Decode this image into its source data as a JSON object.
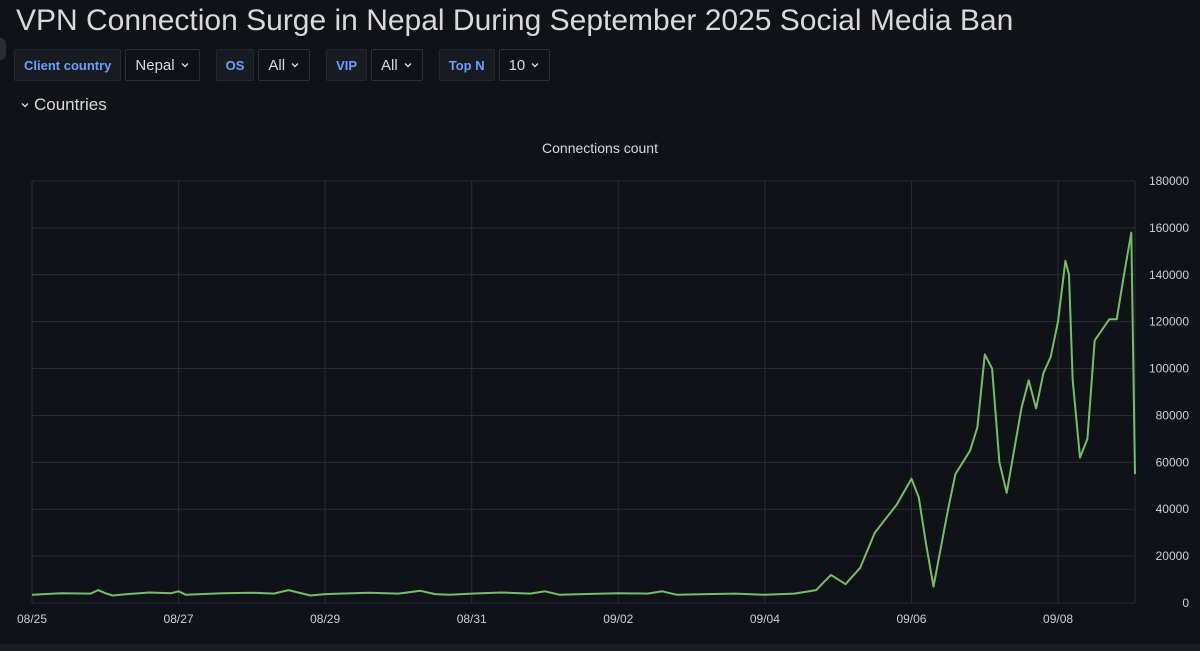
{
  "dashboard": {
    "title": "VPN Connection Surge in Nepal During September 2025 Social Media Ban"
  },
  "variables": [
    {
      "label": "Client country",
      "value": "Nepal"
    },
    {
      "label": "OS",
      "value": "All"
    },
    {
      "label": "VIP",
      "value": "All"
    },
    {
      "label": "Top N",
      "value": "10"
    }
  ],
  "row": {
    "title": "Countries",
    "icon": "chevron-down-icon"
  },
  "colors": {
    "background": "#111217",
    "series_line": "#73bf69",
    "variable_label": "#6e9fff",
    "grid": "#2a2c31"
  },
  "chart_data": {
    "type": "line",
    "title": "Connections count",
    "x_tick_labels": [
      "08/25",
      "08/27",
      "08/29",
      "08/31",
      "09/02",
      "09/04",
      "09/06",
      "09/08"
    ],
    "y_tick_labels": [
      "0",
      "20000",
      "40000",
      "60000",
      "80000",
      "100000",
      "120000",
      "140000",
      "160000",
      "180000"
    ],
    "ylim": [
      0,
      180000
    ],
    "x_unit": "days since 08/25 00:00",
    "xlim": [
      0,
      15.05
    ],
    "y_axis_side": "right",
    "grid": true,
    "legend": "none",
    "series": [
      {
        "x": [
          0,
          0.4,
          0.8,
          0.9,
          1.0,
          1.1,
          1.3,
          1.6,
          1.9,
          2.0,
          2.1,
          2.3,
          2.6,
          3.0,
          3.3,
          3.5,
          3.8,
          4.0,
          4.2,
          4.6,
          5.0,
          5.3,
          5.5,
          5.7,
          6.0,
          6.4,
          6.8,
          7.0,
          7.2,
          7.5,
          8.0,
          8.4,
          8.6,
          8.8,
          9.2,
          9.6,
          10.0,
          10.4,
          10.7,
          10.9,
          11.1,
          11.3,
          11.5,
          11.8,
          12.0,
          12.1,
          12.2,
          12.3,
          12.5,
          12.6,
          12.7,
          12.8,
          12.9,
          13.0,
          13.1,
          13.2,
          13.3,
          13.5,
          13.6,
          13.7,
          13.8,
          13.9,
          14.0,
          14.1,
          14.15,
          14.2,
          14.3,
          14.4,
          14.5,
          14.7,
          14.8,
          14.9,
          15.0,
          15.05
        ],
        "y": [
          3500,
          4200,
          4000,
          5500,
          4200,
          3200,
          3800,
          4500,
          4200,
          5000,
          3500,
          3800,
          4200,
          4400,
          4000,
          5500,
          3200,
          3800,
          4000,
          4400,
          4000,
          5200,
          3800,
          3500,
          4000,
          4500,
          4000,
          5000,
          3500,
          3800,
          4200,
          4000,
          5000,
          3500,
          3800,
          4000,
          3500,
          4000,
          5500,
          12000,
          8000,
          15000,
          30000,
          42000,
          53000,
          45000,
          25000,
          7000,
          40000,
          55000,
          60000,
          65000,
          75000,
          106000,
          100000,
          60000,
          47000,
          83000,
          95000,
          83000,
          98000,
          105000,
          120000,
          146000,
          140000,
          95000,
          62000,
          70000,
          112000,
          121000,
          121000,
          140000,
          158000,
          55000
        ]
      }
    ]
  }
}
